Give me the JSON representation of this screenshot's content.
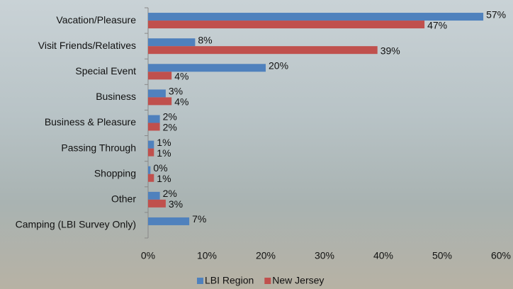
{
  "chart_data": {
    "type": "hbar",
    "categories": [
      "Vacation/Pleasure",
      "Visit Friends/Relatives",
      "Special Event",
      "Business",
      "Business & Pleasure",
      "Passing Through",
      "Shopping",
      "Other",
      "Camping (LBI Survey Only)"
    ],
    "series": [
      {
        "name": "LBI Region",
        "color": "#4f81bd",
        "values": [
          57,
          8,
          20,
          3,
          2,
          1,
          0.4,
          2,
          7
        ],
        "value_labels": [
          "57%",
          "8%",
          "20%",
          "3%",
          "2%",
          "1%",
          "0%",
          "2%",
          "7%"
        ]
      },
      {
        "name": "New Jersey",
        "color": "#c0504d",
        "values": [
          47,
          39,
          4,
          4,
          2,
          1,
          1,
          3,
          null
        ],
        "value_labels": [
          "47%",
          "39%",
          "4%",
          "4%",
          "2%",
          "1%",
          "1%",
          "3%",
          null
        ]
      }
    ],
    "xlim": [
      0,
      60
    ],
    "xticks": [
      {
        "value": 0,
        "label": "0%"
      },
      {
        "value": 10,
        "label": "10%"
      },
      {
        "value": 20,
        "label": "20%"
      },
      {
        "value": 30,
        "label": "30%"
      },
      {
        "value": 40,
        "label": "40%"
      },
      {
        "value": 50,
        "label": "50%"
      },
      {
        "value": 60,
        "label": "60%"
      }
    ],
    "legend": "bottom"
  }
}
